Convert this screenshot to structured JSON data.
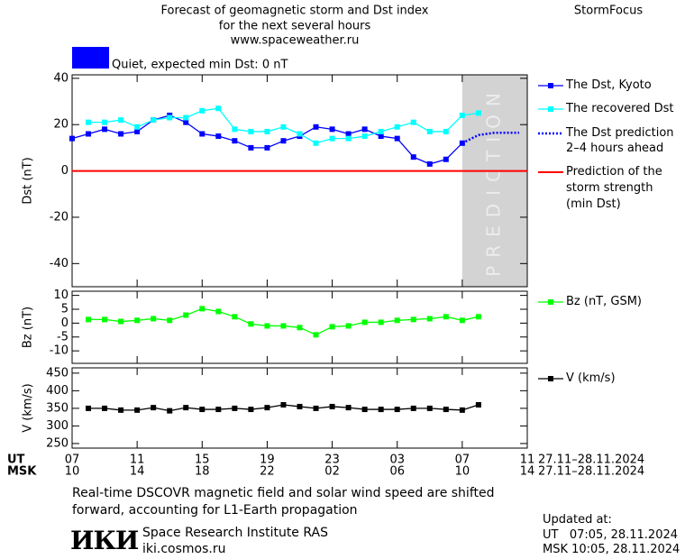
{
  "header": {
    "title_lines": [
      "Forecast of geomagnetic storm and Dst index",
      "for the next several hours",
      "www.spaceweather.ru"
    ],
    "brand": "StormFocus"
  },
  "status": {
    "text": "Quiet, expected min Dst: 0 nT",
    "color": "#0000ff"
  },
  "chart_data": [
    {
      "type": "line",
      "y_label": "Dst (nT)",
      "xlim": [
        0,
        28
      ],
      "ylim": [
        -50,
        41.5
      ],
      "yticks": [
        -40,
        -20,
        0,
        20,
        40
      ],
      "prediction_band": {
        "label": "PREDICTION",
        "xlim": [
          24,
          28
        ],
        "color": "#d3d3d3"
      },
      "min_dst": {
        "name": "Prediction of the storm strength (min Dst)",
        "value": 0,
        "color": "#ff0000"
      },
      "series": [
        {
          "name": "The Dst, Kyoto",
          "color": "#0000ff",
          "marker": true,
          "x": [
            0,
            1,
            2,
            3,
            4,
            5,
            6,
            7,
            8,
            9,
            10,
            11,
            12,
            13,
            14,
            15,
            16,
            17,
            18,
            19,
            20,
            21,
            22,
            23,
            24
          ],
          "values": [
            14,
            16,
            18,
            16,
            17,
            22,
            24,
            21,
            16,
            15,
            13,
            10,
            10,
            13,
            15,
            19,
            18,
            16,
            18,
            15,
            14,
            6,
            3,
            5,
            12
          ]
        },
        {
          "name": "The recovered Dst",
          "color": "#00ffff",
          "marker": true,
          "x": [
            1,
            2,
            3,
            4,
            5,
            6,
            7,
            8,
            9,
            10,
            11,
            12,
            13,
            14,
            15,
            16,
            17,
            18,
            19,
            20,
            21,
            22,
            23,
            24,
            25
          ],
          "values": [
            21,
            21,
            22,
            19,
            22,
            23,
            23,
            26,
            27,
            18,
            17,
            17,
            19,
            16,
            12,
            14,
            14,
            15,
            17,
            19,
            21,
            17,
            17,
            24,
            25
          ]
        },
        {
          "name": "The Dst prediction 2–4 hours ahead",
          "color": "#0000ff",
          "marker": false,
          "style": "dotted",
          "x": [
            24,
            25,
            26,
            27.5
          ],
          "values": [
            12,
            15.5,
            16.5,
            16.5
          ]
        }
      ]
    },
    {
      "type": "line",
      "y_label": "Bz (nT)",
      "xlim": [
        0,
        28
      ],
      "ylim": [
        -14.5,
        11.5
      ],
      "yticks": [
        -10,
        -5,
        0,
        5,
        10
      ],
      "series": [
        {
          "name": "Bz (nT, GSM)",
          "color": "#00ff00",
          "marker": true,
          "x": [
            1,
            2,
            3,
            4,
            5,
            6,
            7,
            8,
            9,
            10,
            11,
            12,
            13,
            14,
            15,
            16,
            17,
            18,
            19,
            20,
            21,
            22,
            23,
            24,
            25
          ],
          "values": [
            1.3,
            1.3,
            0.6,
            1,
            1.6,
            1,
            2.9,
            5.2,
            4.2,
            2.3,
            -0.3,
            -1,
            -1,
            -1.6,
            -4.2,
            -1.3,
            -1,
            0.3,
            0.3,
            1,
            1.3,
            1.6,
            2.3,
            1,
            2.3
          ]
        }
      ]
    },
    {
      "type": "line",
      "y_label": "V (km/s)",
      "xlim": [
        0,
        28
      ],
      "ylim": [
        237,
        465
      ],
      "yticks": [
        250,
        300,
        350,
        400,
        450
      ],
      "x_axis_names": [
        "UT",
        "MSK"
      ],
      "xticks": [
        {
          "value": 0,
          "label": "07"
        },
        {
          "value": 4,
          "label": "11"
        },
        {
          "value": 8,
          "label": "15"
        },
        {
          "value": 12,
          "label": "19"
        },
        {
          "value": 16,
          "label": "23"
        },
        {
          "value": 20,
          "label": "03"
        },
        {
          "value": 24,
          "label": "07"
        },
        {
          "value": 28,
          "label": "11"
        }
      ],
      "x2ticks": [
        {
          "value": 0,
          "label": "10"
        },
        {
          "value": 4,
          "label": "14"
        },
        {
          "value": 8,
          "label": "18"
        },
        {
          "value": 12,
          "label": "22"
        },
        {
          "value": 16,
          "label": "02"
        },
        {
          "value": 20,
          "label": "06"
        },
        {
          "value": 24,
          "label": "10"
        },
        {
          "value": 28,
          "label": "14"
        }
      ],
      "date_ranges": [
        "27.11–28.11.2024",
        "27.11–28.11.2024"
      ],
      "series": [
        {
          "name": "V (km/s)",
          "color": "#000000",
          "marker": true,
          "x": [
            1,
            2,
            3,
            4,
            5,
            6,
            7,
            8,
            9,
            10,
            11,
            12,
            13,
            14,
            15,
            16,
            17,
            18,
            19,
            20,
            21,
            22,
            23,
            24,
            25
          ],
          "values": [
            350,
            350,
            345,
            345,
            352,
            343,
            352,
            347,
            347,
            350,
            347,
            352,
            360,
            355,
            350,
            355,
            352,
            347,
            347,
            347,
            350,
            350,
            347,
            345,
            360
          ]
        }
      ]
    }
  ],
  "footer": {
    "note": "Real-time DSCOVR magnetic field and solar wind speed are shifted forward, accounting for L1-Earth propagation",
    "logo": "ИКИ",
    "institute": "Space Research Institute RAS",
    "site": "iki.cosmos.ru",
    "updated_title": "Updated at:",
    "updated_ut": "UT   07:05, 28.11.2024",
    "updated_msk": "MSK 10:05, 28.11.2024"
  }
}
